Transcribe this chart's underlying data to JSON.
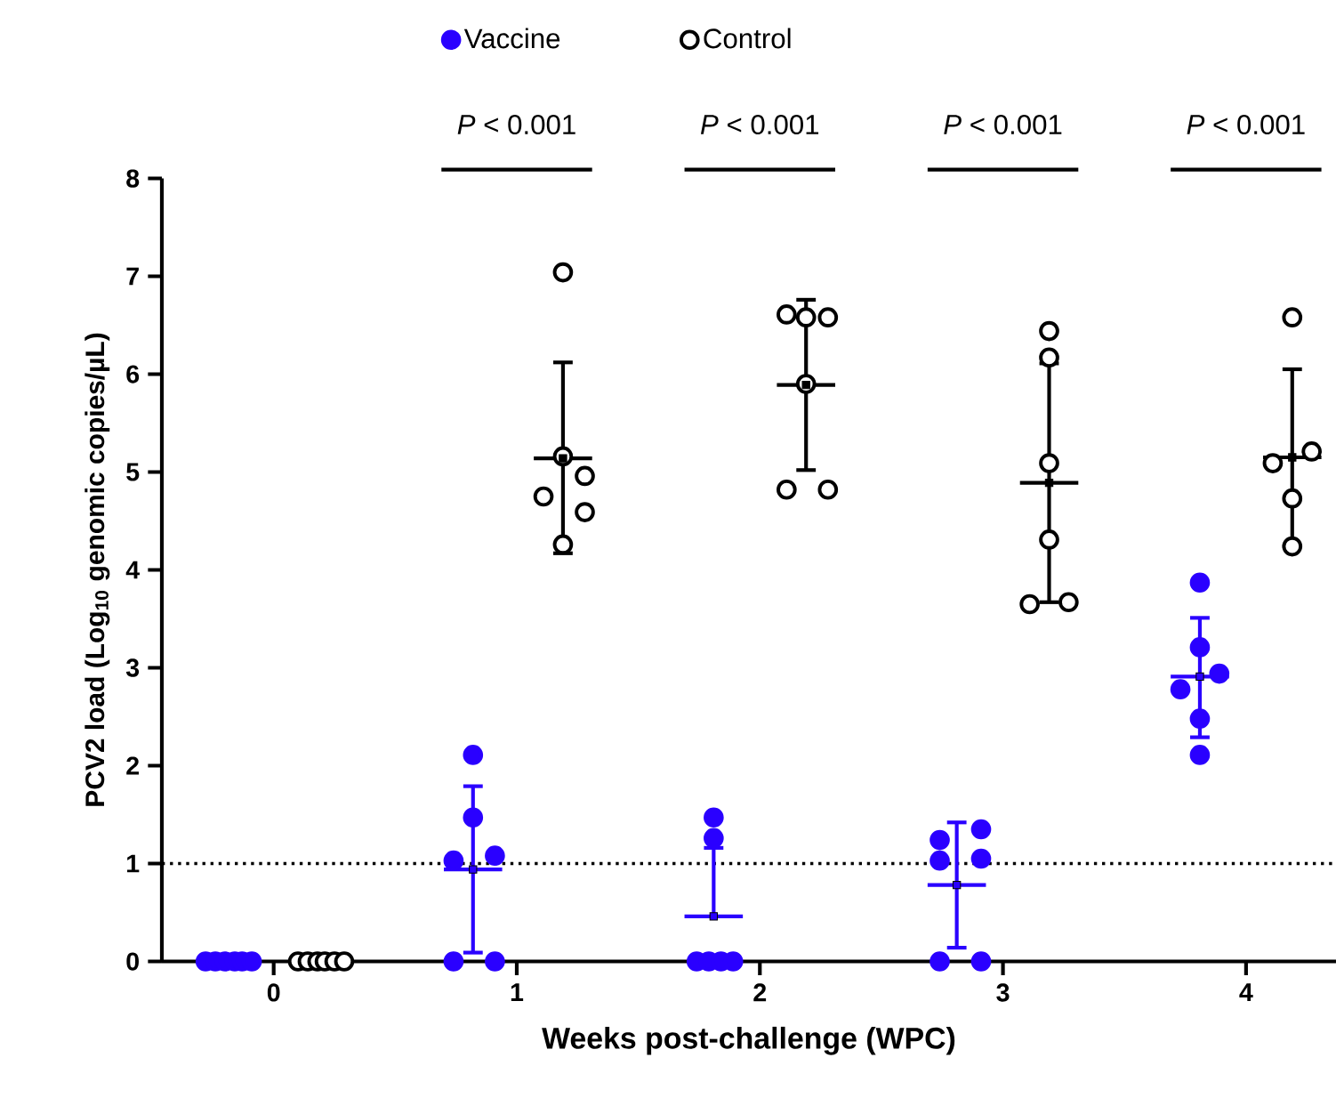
{
  "chart_data": {
    "type": "scatter",
    "xlabel": "Weeks post-challenge (WPC)",
    "ylabel": "PCV2 load (Log$_{10}$ genomic copies/µL)",
    "xlim": [
      -0.46,
      4.37
    ],
    "xticks": [
      0,
      1,
      2,
      3,
      4
    ],
    "ylim": [
      0,
      8
    ],
    "yticks": [
      0,
      1,
      2,
      3,
      4,
      5,
      6,
      7,
      8
    ],
    "legend": "top",
    "marker": "circle",
    "annotations": [
      "*P* < 0.001",
      "*P* < 0.001",
      "*P* < 0.001",
      "*P* < 0.001"
    ],
    "ref_lines": [
      {
        "axis": "y",
        "value": 1,
        "line_style": "dotted",
        "color": "#000000"
      }
    ],
    "series": [
      {
        "name": "Vaccine",
        "color": "#2a00ff",
        "x": [
          -0.28,
          -0.24,
          -0.2,
          -0.16,
          -0.13,
          -0.09,
          0.82,
          0.82,
          0.74,
          0.91,
          0.74,
          0.91,
          1.81,
          1.81,
          1.74,
          1.79,
          1.84,
          1.89,
          2.91,
          2.74,
          2.74,
          2.91,
          2.74,
          2.91,
          3.81,
          3.81,
          3.89,
          3.73,
          3.81,
          3.81
        ],
        "values": [
          0,
          0,
          0,
          0,
          0,
          0,
          2.11,
          1.47,
          1.03,
          1.08,
          0,
          0,
          1.47,
          1.26,
          0,
          0,
          0,
          0,
          1.35,
          1.24,
          1.03,
          1.05,
          0,
          0,
          3.87,
          3.21,
          2.94,
          2.78,
          2.48,
          2.11
        ]
      },
      {
        "name": "Control",
        "color": "#000000",
        "x": [
          0.1,
          0.14,
          0.18,
          0.21,
          0.25,
          0.29,
          1.19,
          1.19,
          1.28,
          1.11,
          1.28,
          1.19,
          2.11,
          2.19,
          2.28,
          2.19,
          2.11,
          2.28,
          3.19,
          3.19,
          3.19,
          3.19,
          3.11,
          3.27,
          4.19,
          4.11,
          4.27,
          4.19,
          4.19
        ],
        "values": [
          0,
          0,
          0,
          0,
          0,
          0,
          7.04,
          5.16,
          4.96,
          4.75,
          4.59,
          4.26,
          6.61,
          6.58,
          6.58,
          5.9,
          4.82,
          4.82,
          6.44,
          6.17,
          5.09,
          4.31,
          3.65,
          3.67,
          6.58,
          5.09,
          5.21,
          4.73,
          4.24
        ]
      },
      {
        "color": "#2a00ff",
        "marker": "square",
        "x": [
          0.82,
          1.81,
          2.81,
          3.81
        ],
        "values": [
          0.94,
          0.46,
          0.78,
          2.91
        ],
        "errors": [
          [
            0.09,
            1.79
          ],
          [
            0.46,
            1.16
          ],
          [
            0.14,
            1.42
          ],
          [
            2.29,
            3.51
          ]
        ],
        "xerrors": [
          0.12,
          0.12,
          0.12,
          0.12
        ]
      },
      {
        "color": "#000000",
        "marker": "square",
        "x": [
          1.19,
          2.19,
          3.19,
          4.19
        ],
        "values": [
          5.14,
          5.89,
          4.89,
          5.15
        ],
        "errors": [
          [
            4.17,
            6.12
          ],
          [
            5.02,
            6.76
          ],
          [
            3.67,
            6.11
          ],
          [
            4.24,
            6.05
          ]
        ],
        "xerrors": [
          0.12,
          0.12,
          0.12,
          0.12
        ]
      }
    ]
  }
}
